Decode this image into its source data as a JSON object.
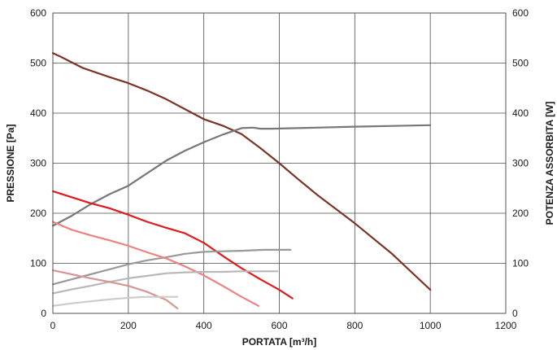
{
  "chart_data": {
    "type": "line",
    "xlabel": "PORTATA [m³/h]",
    "ylabel": "PRESSIONE [Pa]",
    "y2label": "POTENZA ASSORBITA [W]",
    "xlim": [
      0,
      1200
    ],
    "ylim": [
      0,
      600
    ],
    "y2lim": [
      0,
      600
    ],
    "xticks": [
      "0",
      "200",
      "400",
      "600",
      "800",
      "1000",
      "1200"
    ],
    "yticks": [
      "0",
      "100",
      "200",
      "300",
      "400",
      "500",
      "600"
    ],
    "y2ticks": [
      "0",
      "100",
      "200",
      "300",
      "400",
      "500",
      "600"
    ],
    "grid": true,
    "series": [
      {
        "axis": "left",
        "color": "#7b3328",
        "width": 2.2,
        "points": [
          [
            0,
            520
          ],
          [
            20,
            513
          ],
          [
            80,
            490
          ],
          [
            150,
            472
          ],
          [
            200,
            460
          ],
          [
            250,
            445
          ],
          [
            300,
            428
          ],
          [
            350,
            408
          ],
          [
            400,
            388
          ],
          [
            450,
            375
          ],
          [
            500,
            358
          ],
          [
            550,
            330
          ],
          [
            600,
            300
          ],
          [
            650,
            268
          ],
          [
            700,
            237
          ],
          [
            800,
            180
          ],
          [
            900,
            118
          ],
          [
            1000,
            47
          ]
        ]
      },
      {
        "axis": "right",
        "color": "#777777",
        "width": 2.2,
        "points": [
          [
            0,
            175
          ],
          [
            50,
            195
          ],
          [
            100,
            218
          ],
          [
            150,
            238
          ],
          [
            200,
            255
          ],
          [
            250,
            280
          ],
          [
            300,
            305
          ],
          [
            350,
            325
          ],
          [
            400,
            342
          ],
          [
            450,
            357
          ],
          [
            500,
            370
          ],
          [
            530,
            371
          ],
          [
            550,
            369
          ],
          [
            580,
            369
          ],
          [
            700,
            371
          ],
          [
            800,
            373
          ],
          [
            1000,
            376
          ]
        ]
      },
      {
        "axis": "left",
        "color": "#dd1c1c",
        "width": 2.2,
        "points": [
          [
            0,
            244
          ],
          [
            50,
            232
          ],
          [
            100,
            220
          ],
          [
            150,
            210
          ],
          [
            200,
            197
          ],
          [
            250,
            183
          ],
          [
            300,
            171
          ],
          [
            350,
            160
          ],
          [
            400,
            141
          ],
          [
            450,
            115
          ],
          [
            500,
            90
          ],
          [
            550,
            68
          ],
          [
            600,
            47
          ],
          [
            635,
            30
          ]
        ]
      },
      {
        "axis": "right",
        "color": "#999999",
        "width": 2.2,
        "points": [
          [
            0,
            58
          ],
          [
            50,
            68
          ],
          [
            100,
            78
          ],
          [
            150,
            88
          ],
          [
            200,
            98
          ],
          [
            250,
            106
          ],
          [
            300,
            112
          ],
          [
            350,
            119
          ],
          [
            400,
            123
          ],
          [
            450,
            124
          ],
          [
            500,
            125
          ],
          [
            560,
            127
          ],
          [
            630,
            127
          ]
        ]
      },
      {
        "axis": "left",
        "color": "#ee8080",
        "width": 2.2,
        "points": [
          [
            0,
            183
          ],
          [
            50,
            167
          ],
          [
            100,
            156
          ],
          [
            150,
            146
          ],
          [
            200,
            135
          ],
          [
            250,
            122
          ],
          [
            300,
            110
          ],
          [
            350,
            94
          ],
          [
            400,
            76
          ],
          [
            450,
            55
          ],
          [
            500,
            33
          ],
          [
            545,
            15
          ]
        ]
      },
      {
        "axis": "right",
        "color": "#b8b8b8",
        "width": 2.2,
        "points": [
          [
            0,
            40
          ],
          [
            50,
            48
          ],
          [
            100,
            55
          ],
          [
            150,
            63
          ],
          [
            200,
            70
          ],
          [
            250,
            75
          ],
          [
            300,
            80
          ],
          [
            350,
            82
          ],
          [
            400,
            83
          ],
          [
            450,
            83
          ],
          [
            500,
            84
          ],
          [
            550,
            84
          ],
          [
            595,
            84
          ]
        ]
      },
      {
        "axis": "left",
        "color": "#d99590",
        "width": 2.2,
        "points": [
          [
            0,
            86
          ],
          [
            50,
            78
          ],
          [
            100,
            70
          ],
          [
            150,
            63
          ],
          [
            200,
            55
          ],
          [
            250,
            43
          ],
          [
            300,
            27
          ],
          [
            330,
            10
          ]
        ]
      },
      {
        "axis": "right",
        "color": "#cccccc",
        "width": 2.2,
        "points": [
          [
            0,
            15
          ],
          [
            50,
            20
          ],
          [
            100,
            24
          ],
          [
            150,
            28
          ],
          [
            200,
            31
          ],
          [
            250,
            33
          ],
          [
            300,
            33
          ],
          [
            330,
            33
          ]
        ]
      }
    ]
  }
}
